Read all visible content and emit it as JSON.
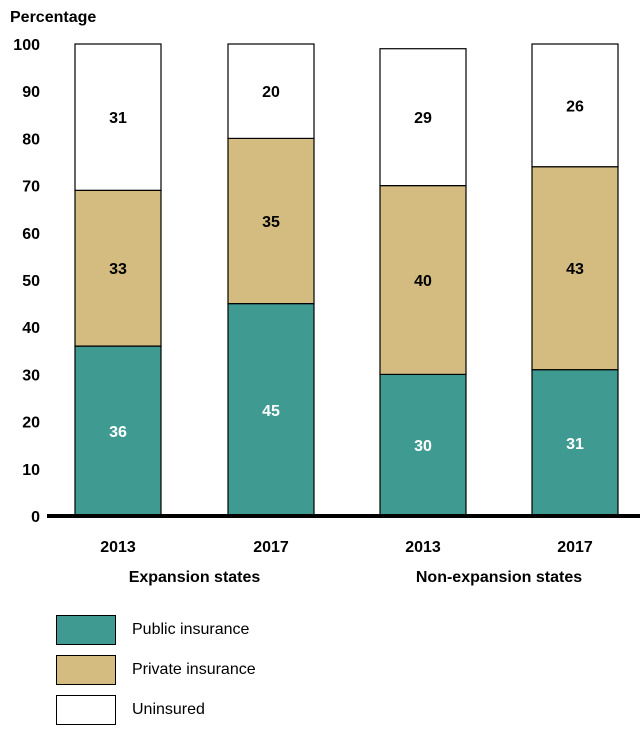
{
  "chart_data": {
    "type": "bar",
    "stacked": true,
    "ylabel": "Percentage",
    "ylim": [
      0,
      100
    ],
    "yticks": [
      0,
      10,
      20,
      30,
      40,
      50,
      60,
      70,
      80,
      90,
      100
    ],
    "categories": [
      "2013",
      "2017",
      "2013",
      "2017"
    ],
    "groups": [
      {
        "label": "Expansion states",
        "categories": [
          0,
          1
        ]
      },
      {
        "label": "Non-expansion states",
        "categories": [
          2,
          3
        ]
      }
    ],
    "series": [
      {
        "name": "Public insurance",
        "values": [
          36,
          45,
          30,
          31
        ],
        "color": "#3f9a92",
        "label_color": "#ffffff"
      },
      {
        "name": "Private insurance",
        "values": [
          33,
          35,
          40,
          43
        ],
        "color": "#d4bc80",
        "label_color": "#000000"
      },
      {
        "name": "Uninsured",
        "values": [
          31,
          20,
          29,
          26
        ],
        "color": "#ffffff",
        "label_color": "#000000"
      }
    ],
    "grid": false,
    "legend_position": "bottom-left"
  }
}
